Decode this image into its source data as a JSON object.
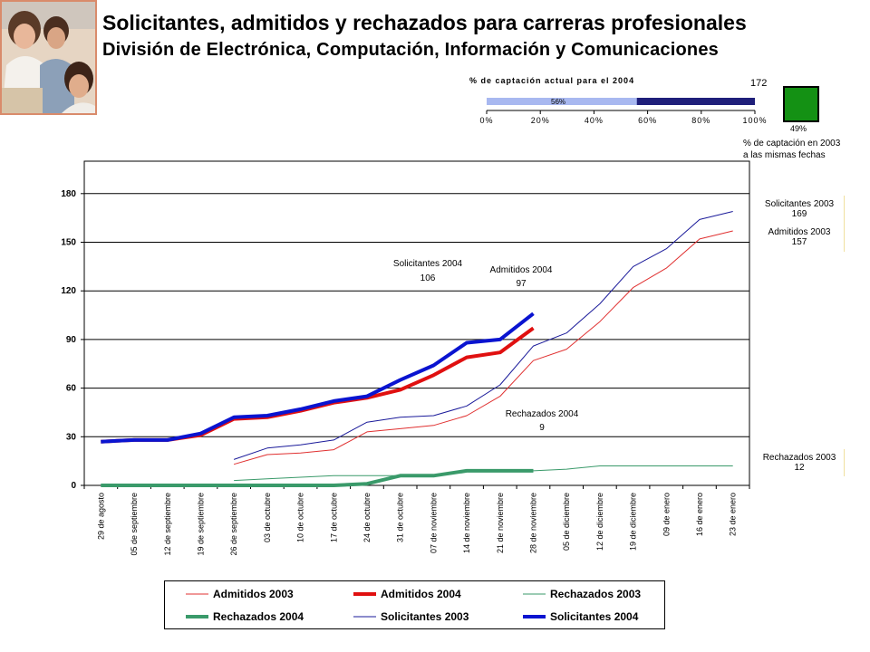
{
  "title": "Solicitantes, admitidos y rechazados para carreras profesionales",
  "subtitle": "División de Electrónica, Computación, Información y Comunicaciones",
  "capture_gauge": {
    "title": "% de captación actual para el 2004",
    "value_label": "56%",
    "value": 56,
    "ticks": [
      "0%",
      "20%",
      "40%",
      "60%",
      "80%",
      "100%"
    ]
  },
  "capture_2003": {
    "top_value": "172",
    "box_value": "49%",
    "note_line1": "% de captación en 2003",
    "note_line2": "a las mismas fechas",
    "color": "#149114"
  },
  "annotations": [
    {
      "name": "solicitantes-2004",
      "line1": "Solicitantes 2004",
      "line2": "106"
    },
    {
      "name": "admitidos-2004",
      "line1": "Admitidos 2004",
      "line2": "97"
    },
    {
      "name": "rechazados-2004",
      "line1": "Rechazados 2004",
      "line2": "9"
    }
  ],
  "side_labels": {
    "solicitantes_2003": {
      "line1": "Solicitantes 2003",
      "line2": "169"
    },
    "admitidos_2003": {
      "line1": "Admitidos 2003",
      "line2": "157"
    },
    "rechazados_2003": {
      "line1": "Rechazados 2003",
      "line2": "12"
    }
  },
  "chart_data": {
    "type": "line",
    "ylim": [
      0,
      200
    ],
    "yticks": [
      0,
      30,
      60,
      90,
      120,
      150,
      180
    ],
    "grid": true,
    "legend_position": "bottom",
    "categories": [
      "29 de agosto",
      "05 de septiembre",
      "12 de septiembre",
      "19 de septiembre",
      "26 de septiembre",
      "03 de octubre",
      "10 de octubre",
      "17 de octubre",
      "24 de octubre",
      "31 de octubre",
      "07 de noviembre",
      "14 de noviembre",
      "21 de noviembre",
      "28 de noviembre",
      "05 de diciembre",
      "12 de diciembre",
      "19 de diciembre",
      "09 de enero",
      "16 de enero",
      "23 de enero"
    ],
    "series": [
      {
        "name": "Admitidos 2003",
        "color": "#e03030",
        "width": 1,
        "values": [
          null,
          null,
          null,
          null,
          13,
          19,
          20,
          22,
          33,
          35,
          37,
          43,
          55,
          77,
          84,
          101,
          122,
          134,
          152,
          157
        ]
      },
      {
        "name": "Admitidos 2004",
        "color": "#e01010",
        "width": 4,
        "values": [
          27,
          28,
          28,
          31,
          41,
          42,
          46,
          51,
          54,
          59,
          68,
          79,
          82,
          97,
          null,
          null,
          null,
          null,
          null,
          null
        ]
      },
      {
        "name": "Rechazados 2003",
        "color": "#3a9a6a",
        "width": 1,
        "values": [
          null,
          null,
          null,
          null,
          3,
          4,
          5,
          6,
          6,
          6,
          6,
          9,
          9,
          9,
          10,
          12,
          12,
          12,
          12,
          12
        ]
      },
      {
        "name": "Rechazados 2004",
        "color": "#3a9a6a",
        "width": 4,
        "values": [
          0,
          0,
          0,
          0,
          0,
          0,
          0,
          0,
          1,
          6,
          6,
          9,
          9,
          9,
          null,
          null,
          null,
          null,
          null,
          null
        ]
      },
      {
        "name": "Solicitantes 2003",
        "color": "#1a1a9a",
        "width": 1,
        "values": [
          null,
          null,
          null,
          null,
          16,
          23,
          25,
          28,
          39,
          42,
          43,
          49,
          62,
          86,
          94,
          112,
          135,
          146,
          164,
          169
        ]
      },
      {
        "name": "Solicitantes 2004",
        "color": "#0a14d0",
        "width": 4,
        "values": [
          27,
          28,
          28,
          32,
          42,
          43,
          47,
          52,
          55,
          65,
          74,
          88,
          90,
          106,
          null,
          null,
          null,
          null,
          null,
          null
        ]
      }
    ]
  }
}
